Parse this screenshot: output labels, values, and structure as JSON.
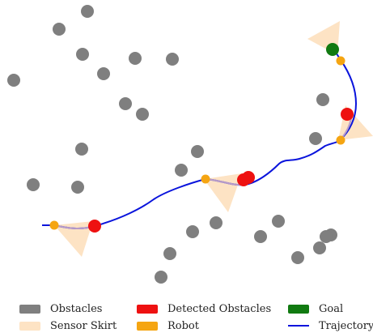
{
  "colors": {
    "obstacle": "#7f7f7f",
    "detected": "#ee1111",
    "goal": "#117a11",
    "robot": "#f5a512",
    "skirt": "#fde3c4",
    "trajectory": "#0a14dc",
    "trajectory_past": "#b89cc8"
  },
  "legend": {
    "obstacles": "Obstacles",
    "sensor_skirt": "Sensor Skirt",
    "detected_obstacles": "Detected Obstacles",
    "robot": "Robot",
    "goal": "Goal",
    "trajectory": "Trajectory"
  }
}
